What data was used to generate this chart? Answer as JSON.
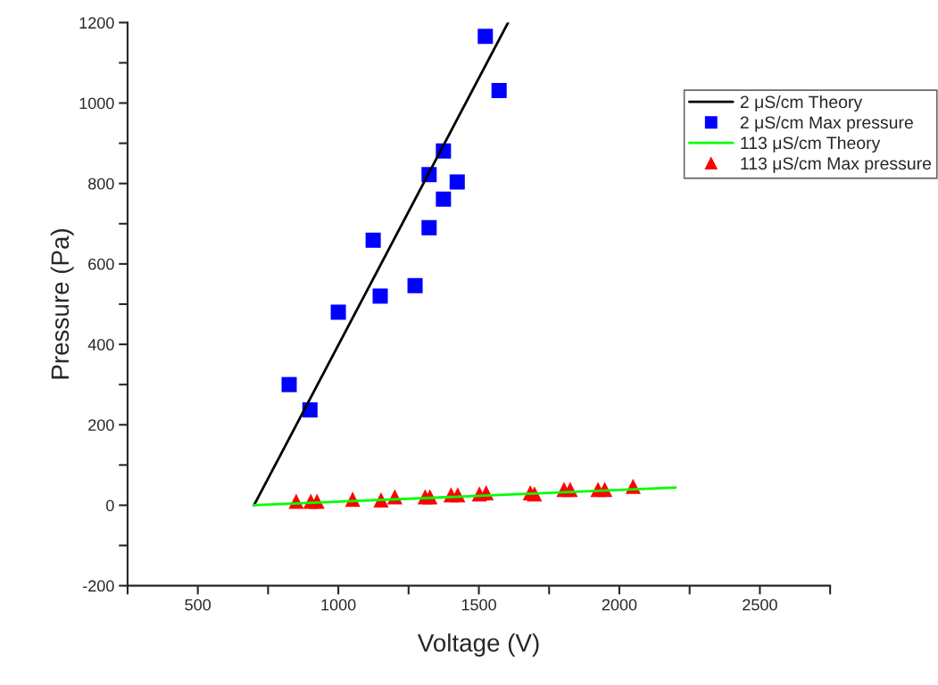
{
  "chart_data": {
    "type": "scatter",
    "xlabel": "Voltage (V)",
    "ylabel": "Pressure (Pa)",
    "xlim": [
      250,
      2750
    ],
    "ylim": [
      -200,
      1200
    ],
    "xticks": [
      {
        "value": 250,
        "label": null
      },
      500,
      {
        "value": 750,
        "label": null
      },
      1000,
      {
        "value": 1250,
        "label": null
      },
      1500,
      {
        "value": 1750,
        "label": null
      },
      2000,
      {
        "value": 2250,
        "label": null
      },
      2500,
      {
        "value": 2750,
        "label": null
      }
    ],
    "yticks": [
      -200,
      {
        "value": -100,
        "label": null
      },
      0,
      {
        "value": 100,
        "label": null
      },
      200,
      {
        "value": 300,
        "label": null
      },
      400,
      {
        "value": 500,
        "label": null
      },
      600,
      {
        "value": 700,
        "label": null
      },
      800,
      {
        "value": 900,
        "label": null
      },
      1000,
      {
        "value": 1100,
        "label": null
      },
      1200
    ],
    "grid": false,
    "legend": "top right",
    "series": [
      {
        "name": "2 μS/cm Theory",
        "type": "line",
        "color": "#000000",
        "marker": "none",
        "line_style": "solid",
        "x": [
          700,
          1604
        ],
        "values": [
          0,
          1200
        ]
      },
      {
        "name": "2 μS/cm Max pressure",
        "color": "#0000ff",
        "marker": "square",
        "x": [
          825,
          899,
          1000,
          1124,
          1149,
          1273,
          1323,
          1323,
          1374,
          1374,
          1423,
          1523,
          1572
        ],
        "values": [
          300,
          237,
          480,
          659,
          520,
          546,
          690,
          822,
          761,
          881,
          804,
          1166,
          1031
        ]
      },
      {
        "name": "113 μS/cm Theory",
        "type": "line",
        "color": "#00ff00",
        "marker": "none",
        "line_style": "solid",
        "x": [
          700,
          2200
        ],
        "values": [
          0,
          44
        ]
      },
      {
        "name": "113 μS/cm Max pressure",
        "color": "#ff0000",
        "marker": "triangle",
        "x": [
          850,
          902,
          924,
          1051,
          1152,
          1201,
          1309,
          1326,
          1401,
          1425,
          1502,
          1526,
          1683,
          1698,
          1803,
          1825,
          1924,
          1948,
          2049
        ],
        "values": [
          10,
          10,
          10,
          15,
          13,
          21,
          21,
          21,
          26,
          26,
          28,
          31,
          31,
          28,
          39,
          39,
          39,
          39,
          47
        ]
      }
    ]
  }
}
